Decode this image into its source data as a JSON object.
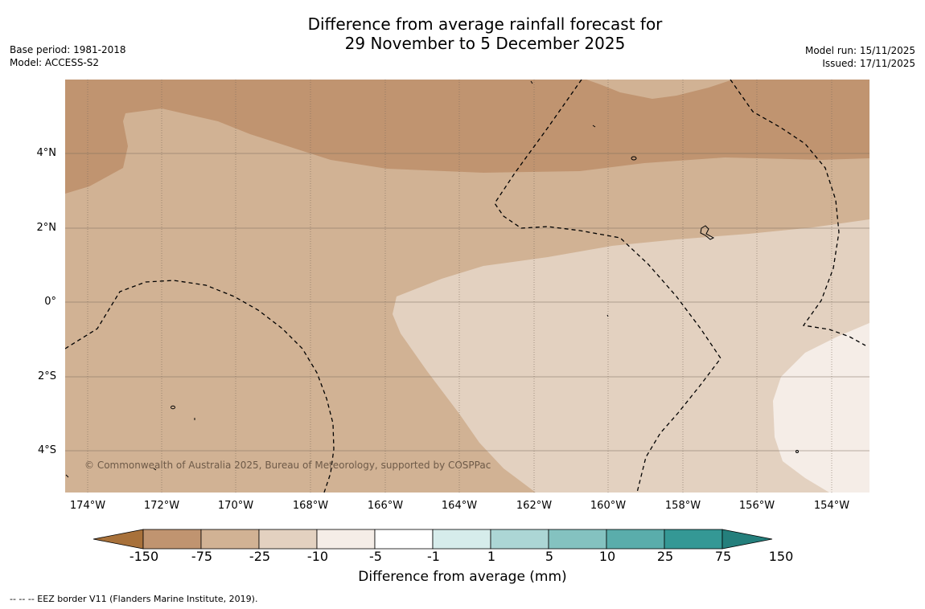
{
  "title": {
    "line1": "Difference from average rainfall forecast for",
    "line2": "29 November to 5 December 2025"
  },
  "meta": {
    "base_period": "Base period: 1981-2018",
    "model": "Model: ACCESS-S2",
    "model_run": "Model run: 15/11/2025",
    "issued": "Issued: 17/11/2025"
  },
  "map": {
    "copyright": "© Commonwealth of Australia 2025, Bureau of Meteorology, supported by COSPPac",
    "lat_labels": [
      "4°N",
      "2°N",
      "0°",
      "2°S",
      "4°S"
    ],
    "lon_labels": [
      "174°W",
      "172°W",
      "170°W",
      "168°W",
      "166°W",
      "164°W",
      "162°W",
      "160°W",
      "158°W",
      "156°W",
      "154°W"
    ],
    "extent": {
      "lon_min": -174.6,
      "lon_max": -153.0,
      "lat_min": -5.2,
      "lat_max": 5.9
    }
  },
  "legend": {
    "title": "Difference from average (mm)",
    "labels": [
      "-150",
      "-75",
      "-25",
      "-10",
      "-5",
      "-1",
      "1",
      "5",
      "10",
      "25",
      "75",
      "150"
    ],
    "colors": [
      "#a8713a",
      "#c09470",
      "#d1b294",
      "#e3d1c0",
      "#f5ede7",
      "#ffffff",
      "#d6eceb",
      "#acd6d5",
      "#84c2c0",
      "#5aadab",
      "#349895",
      "#247f7c"
    ]
  },
  "footer": "--  --  -- EEZ border V11 (Flanders Marine Institute, 2019).",
  "colors": {
    "band_neg25_neg75": "#c09470",
    "band_neg10_neg25": "#d1b294",
    "band_neg5_neg10": "#e3d1c0",
    "band_neg1_neg5": "#f5ede7"
  }
}
